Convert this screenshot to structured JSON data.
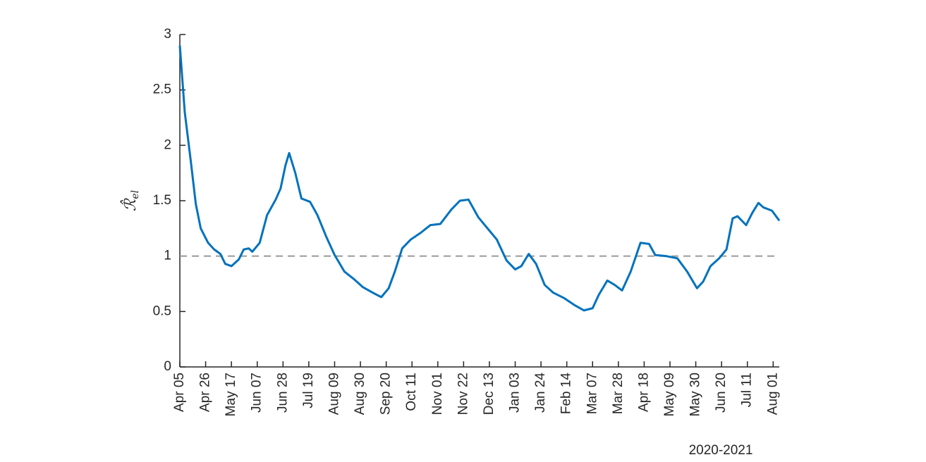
{
  "chart_data": {
    "type": "line",
    "ylabel": "ℛ̂",
    "ylabel_subscript": "el",
    "xlabel": "2020-2021",
    "xlim": [
      0,
      488
    ],
    "ylim": [
      0,
      3
    ],
    "yticks": [
      0,
      0.5,
      1,
      1.5,
      2,
      2.5,
      3
    ],
    "xticks": [
      {
        "value": 0,
        "label": "Apr 05"
      },
      {
        "value": 21,
        "label": "Apr 26"
      },
      {
        "value": 42,
        "label": "May 17"
      },
      {
        "value": 63,
        "label": "Jun 07"
      },
      {
        "value": 84,
        "label": "Jun 28"
      },
      {
        "value": 105,
        "label": "Jul 19"
      },
      {
        "value": 126,
        "label": "Aug 09"
      },
      {
        "value": 147,
        "label": "Aug 30"
      },
      {
        "value": 168,
        "label": "Sep 20"
      },
      {
        "value": 189,
        "label": "Oct 11"
      },
      {
        "value": 210,
        "label": "Nov 01"
      },
      {
        "value": 231,
        "label": "Nov 22"
      },
      {
        "value": 252,
        "label": "Dec 13"
      },
      {
        "value": 273,
        "label": "Jan 03"
      },
      {
        "value": 294,
        "label": "Jan 24"
      },
      {
        "value": 315,
        "label": "Feb 14"
      },
      {
        "value": 336,
        "label": "Mar 07"
      },
      {
        "value": 357,
        "label": "Mar 28"
      },
      {
        "value": 378,
        "label": "Apr 18"
      },
      {
        "value": 399,
        "label": "May 09"
      },
      {
        "value": 420,
        "label": "May 30"
      },
      {
        "value": 441,
        "label": "Jun 20"
      },
      {
        "value": 462,
        "label": "Jul 11"
      },
      {
        "value": 483,
        "label": "Aug 01"
      }
    ],
    "reference_line": {
      "value": 1,
      "color": "#999999"
    },
    "series": [
      {
        "color": "#0072bd",
        "x": [
          0,
          4,
          9,
          13,
          17,
          23,
          28,
          33,
          37,
          42,
          48,
          52,
          56,
          59,
          65,
          71,
          78,
          82,
          86,
          89,
          94,
          99,
          106,
          112,
          119,
          126,
          134,
          142,
          149,
          157,
          164,
          170,
          175,
          181,
          188,
          196,
          204,
          212,
          221,
          228,
          235,
          243,
          252,
          258,
          266,
          273,
          278,
          284,
          290,
          297,
          304,
          313,
          321,
          329,
          336,
          341,
          348,
          354,
          360,
          367,
          375,
          382,
          387,
          396,
          405,
          413,
          421,
          426,
          432,
          439,
          445,
          450,
          454,
          461,
          466,
          471,
          475,
          482,
          488
        ],
        "values": [
          2.9,
          2.3,
          1.85,
          1.47,
          1.25,
          1.12,
          1.06,
          1.02,
          0.93,
          0.91,
          0.97,
          1.06,
          1.07,
          1.04,
          1.12,
          1.37,
          1.51,
          1.61,
          1.82,
          1.93,
          1.75,
          1.52,
          1.49,
          1.37,
          1.18,
          1.01,
          0.86,
          0.79,
          0.72,
          0.67,
          0.63,
          0.71,
          0.86,
          1.07,
          1.15,
          1.21,
          1.28,
          1.29,
          1.42,
          1.5,
          1.51,
          1.35,
          1.23,
          1.15,
          0.96,
          0.88,
          0.91,
          1.02,
          0.93,
          0.74,
          0.67,
          0.62,
          0.56,
          0.51,
          0.53,
          0.65,
          0.78,
          0.74,
          0.69,
          0.86,
          1.12,
          1.11,
          1.01,
          1.0,
          0.98,
          0.86,
          0.71,
          0.77,
          0.91,
          0.98,
          1.06,
          1.34,
          1.36,
          1.28,
          1.39,
          1.48,
          1.44,
          1.41,
          1.32
        ]
      }
    ]
  }
}
